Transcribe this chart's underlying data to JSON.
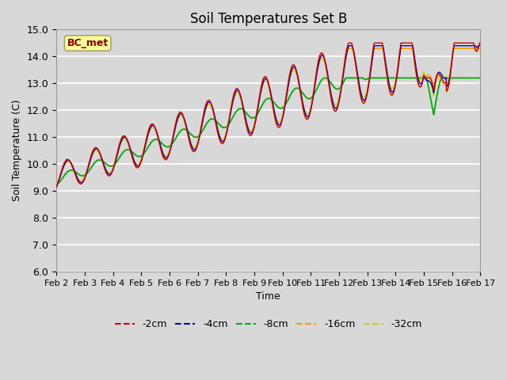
{
  "title": "Soil Temperatures Set B",
  "xlabel": "Time",
  "ylabel": "Soil Temperature (C)",
  "ylim": [
    6.0,
    15.0
  ],
  "yticks": [
    6.0,
    7.0,
    8.0,
    9.0,
    10.0,
    11.0,
    12.0,
    13.0,
    14.0,
    15.0
  ],
  "bg_color": "#d8d8d8",
  "plot_bg_color": "#d8d8d8",
  "series_colors": [
    "#cc0000",
    "#0000cc",
    "#00aa00",
    "#ff9900",
    "#cccc00"
  ],
  "series_labels": [
    "-2cm",
    "-4cm",
    "-8cm",
    "-16cm",
    "-32cm"
  ],
  "annotation_text": "BC_met",
  "annotation_color": "#8b0000",
  "annotation_bg": "#ffff99",
  "x_start": 2,
  "x_end": 17,
  "xtick_labels": [
    "Feb 2",
    "Feb 3",
    "Feb 4",
    "Feb 5",
    "Feb 6",
    "Feb 7",
    "Feb 8",
    "Feb 9",
    "Feb 10",
    "Feb 11",
    "Feb 12",
    "Feb 13",
    "Feb 14",
    "Feb 15",
    "Feb 16",
    "Feb 17"
  ],
  "xtick_positions": [
    2,
    3,
    4,
    5,
    6,
    7,
    8,
    9,
    10,
    11,
    12,
    13,
    14,
    15,
    16,
    17
  ]
}
